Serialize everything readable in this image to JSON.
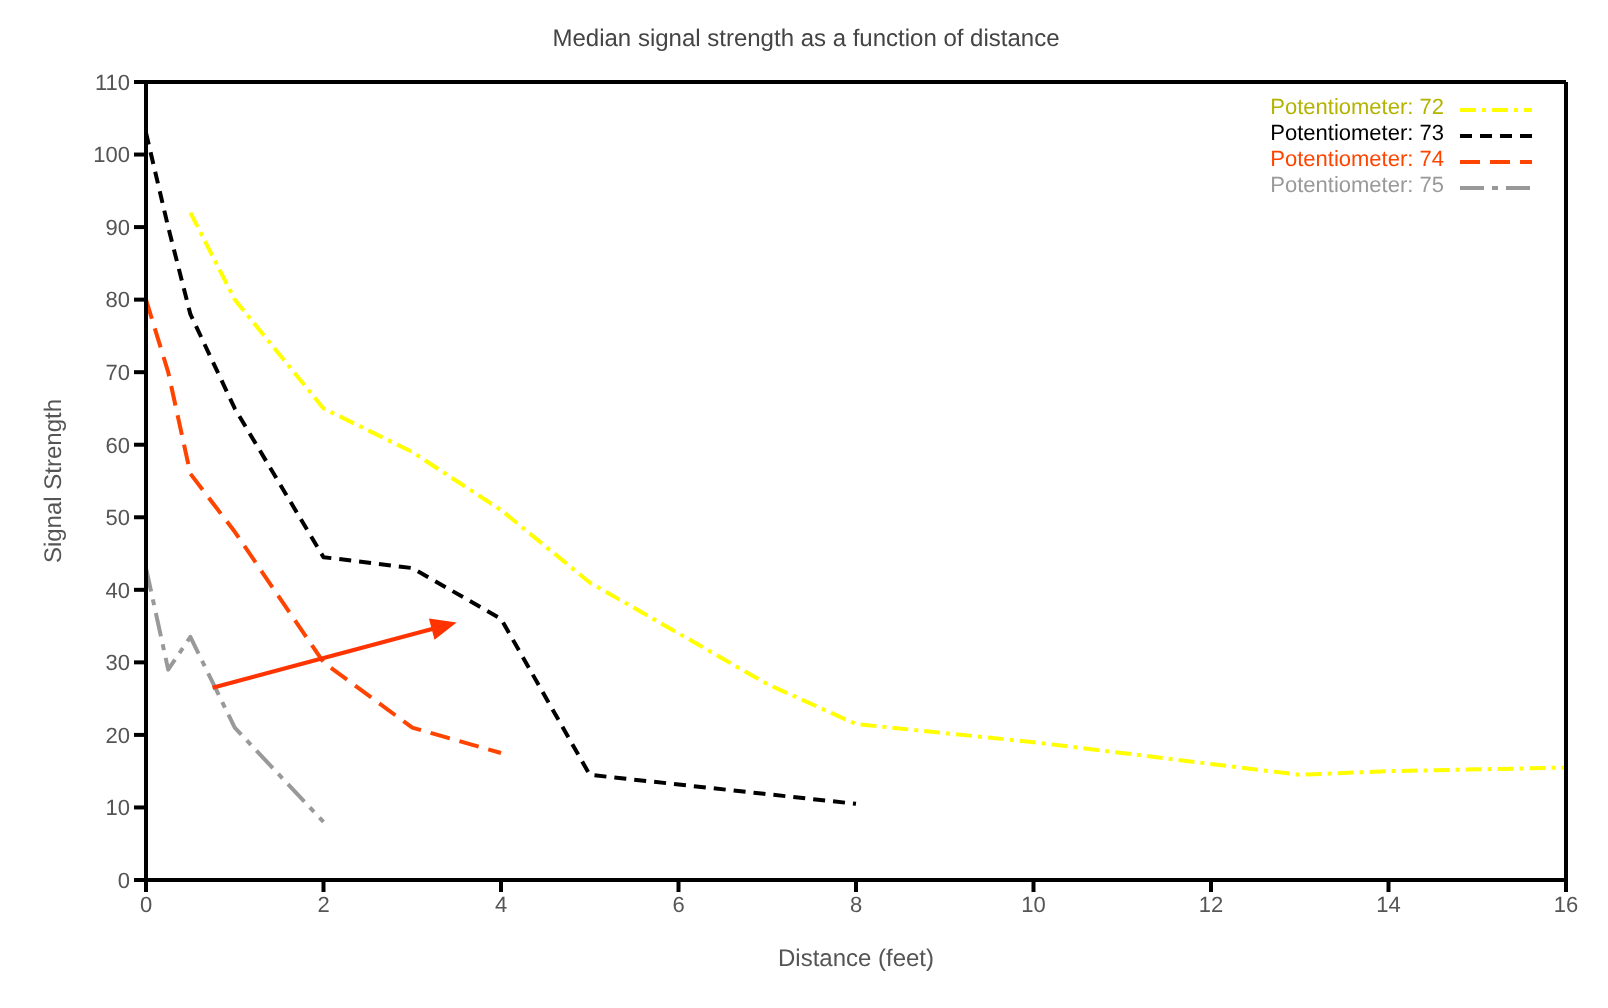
{
  "chart_data": {
    "type": "line",
    "title": "Median signal strength as a function of distance",
    "xlabel": "Distance (feet)",
    "ylabel": "Signal Strength",
    "xlim": [
      0,
      16
    ],
    "xticks": [
      0,
      2,
      4,
      6,
      8,
      10,
      12,
      14,
      16
    ],
    "ylim": [
      0,
      110
    ],
    "yticks": [
      0,
      10,
      20,
      30,
      40,
      50,
      60,
      70,
      80,
      90,
      100,
      110
    ],
    "grid": false,
    "legend": "top right",
    "marker": "none",
    "line_style": "dashed",
    "series": [
      {
        "name": "Potentiometer: 72",
        "color": "#ffff00",
        "x": [
          0.5,
          1,
          2,
          3,
          4,
          5,
          6,
          7,
          8,
          10,
          12,
          13,
          14,
          16
        ],
        "values": [
          92,
          80,
          65,
          59,
          51,
          41,
          34,
          27,
          21.5,
          19,
          16,
          14.5,
          15,
          15.5
        ]
      },
      {
        "name": "Potentiometer: 73",
        "color": "#000000",
        "x": [
          0,
          0.25,
          0.5,
          1,
          2,
          3,
          4,
          5,
          8
        ],
        "values": [
          103,
          90,
          78,
          65,
          44.5,
          43,
          36,
          14.5,
          10.5
        ]
      },
      {
        "name": "Potentiometer: 74",
        "color": "#ff4400",
        "x": [
          0,
          0.25,
          0.5,
          1,
          2,
          3,
          4
        ],
        "values": [
          80,
          70,
          56,
          48,
          30,
          21,
          17.5
        ]
      },
      {
        "name": "Potentiometer: 75",
        "color": "#999999",
        "x": [
          0,
          0.25,
          0.5,
          1,
          2
        ],
        "values": [
          43,
          29,
          33.5,
          21,
          8
        ]
      }
    ]
  }
}
